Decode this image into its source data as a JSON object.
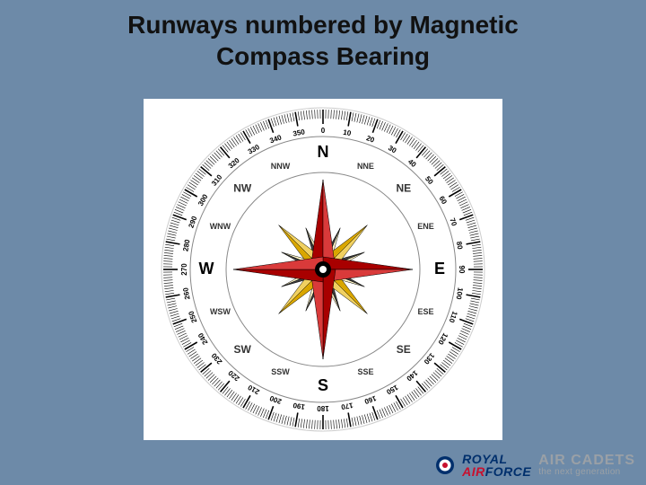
{
  "title_line1": "Runways numbered by Magnetic",
  "title_line2": "Compass Bearing",
  "compass": {
    "bg": "#ffffff",
    "rim_outer_color": "#cccccc",
    "rim_inner_color": "#ffffff",
    "tick_color": "#000000",
    "tick_count": 360,
    "major_tick_every": 10,
    "cardinal_color": "#000000",
    "cardinal_font": 18,
    "intercardinal_font": 12,
    "sub_font": 9,
    "degree_font": 8,
    "degrees": [
      "0",
      "10",
      "20",
      "30",
      "40",
      "50",
      "60",
      "70",
      "80",
      "90",
      "100",
      "110",
      "120",
      "130",
      "140",
      "150",
      "160",
      "170",
      "180",
      "190",
      "200",
      "210",
      "220",
      "230",
      "240",
      "250",
      "260",
      "270",
      "280",
      "290",
      "300",
      "310",
      "320",
      "330",
      "340",
      "350"
    ],
    "cardinals": [
      {
        "label": "N",
        "angle": 0
      },
      {
        "label": "E",
        "angle": 90
      },
      {
        "label": "S",
        "angle": 180
      },
      {
        "label": "W",
        "angle": 270
      }
    ],
    "intercardinals": [
      {
        "label": "NE",
        "angle": 45
      },
      {
        "label": "SE",
        "angle": 135
      },
      {
        "label": "SW",
        "angle": 225
      },
      {
        "label": "NW",
        "angle": 315
      }
    ],
    "subpoints": [
      {
        "label": "NNE",
        "angle": 22.5
      },
      {
        "label": "ENE",
        "angle": 67.5
      },
      {
        "label": "ESE",
        "angle": 112.5
      },
      {
        "label": "SSE",
        "angle": 157.5
      },
      {
        "label": "SSW",
        "angle": 202.5
      },
      {
        "label": "WSW",
        "angle": 247.5
      },
      {
        "label": "WNW",
        "angle": 292.5
      },
      {
        "label": "NNW",
        "angle": 337.5
      }
    ],
    "rose_fill_primary": "#a80000",
    "rose_fill_shadow": "#d9a600",
    "rose_fill_secondary_light": "#fff6c8",
    "rose_fill_secondary_dark": "#3d3d3d",
    "hub_outer": "#000000",
    "hub_inner": "#ffffff"
  },
  "logo": {
    "royal_text": "ROYAL",
    "airforce_text": "AIRFORCE",
    "royal_color": "#002f6c",
    "air_color": "#c8102e",
    "cadets_text": "AIR CADETS",
    "tagline_text": "the next generation",
    "grey": "#9aa0a6",
    "roundel": {
      "outer": "#002f6c",
      "mid": "#ffffff",
      "inner": "#c8102e"
    }
  }
}
